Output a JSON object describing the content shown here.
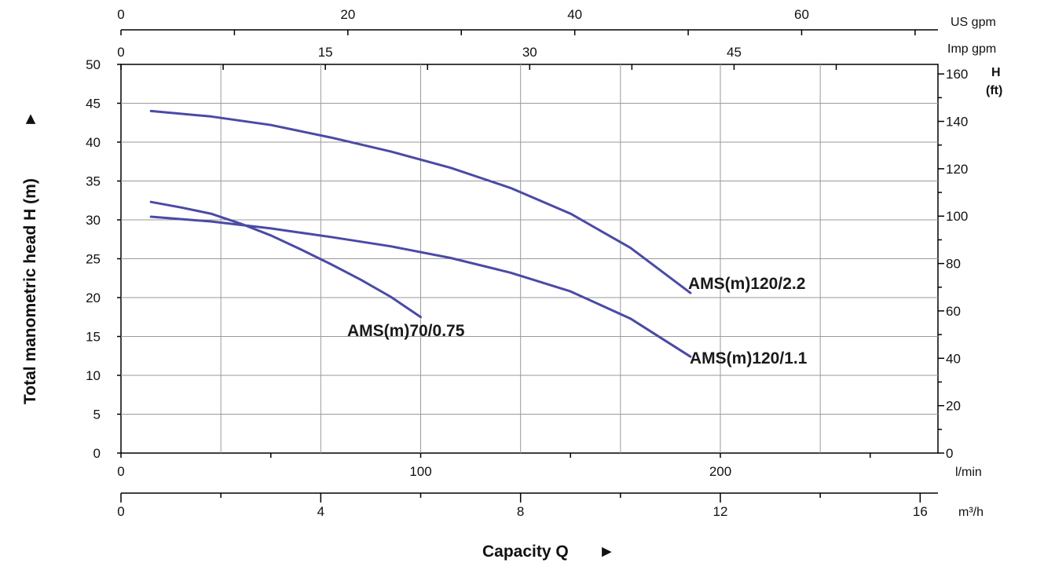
{
  "chart_data": {
    "type": "line",
    "xlabel": "Capacity Q",
    "xlabel_arrow": "►",
    "ylabel": "Total manometric head H (m)",
    "ylabel_arrow": "►",
    "x_unit": "l/min",
    "xlim": [
      0,
      270
    ],
    "ylim": [
      0,
      50
    ],
    "grid": true,
    "line_color": "#4a4aa6",
    "x_ticks": [
      0,
      100,
      200
    ],
    "y_ticks": [
      0,
      5,
      10,
      15,
      20,
      25,
      30,
      35,
      40,
      45,
      50
    ],
    "secondary_axes": {
      "us_gpm": {
        "unit": "US gpm",
        "ticks": [
          0,
          20,
          40,
          60
        ]
      },
      "imp_gpm": {
        "unit": "Imp gpm",
        "ticks": [
          0,
          15,
          30,
          45
        ]
      },
      "m3h": {
        "unit": "m³/h",
        "ticks": [
          0,
          4,
          8,
          12,
          16
        ]
      },
      "h_ft": {
        "unit_line1": "H",
        "unit_line2": "(ft)",
        "ticks": [
          0,
          20,
          40,
          60,
          80,
          100,
          120,
          140,
          160
        ]
      }
    },
    "series": [
      {
        "name": "AMS(m)70/0.75",
        "x": [
          10,
          20,
          30,
          40,
          50,
          60,
          70,
          80,
          90,
          100
        ],
        "y": [
          32.3,
          31.6,
          30.8,
          29.5,
          28.0,
          26.2,
          24.3,
          22.3,
          20.1,
          17.5
        ]
      },
      {
        "name": "AMS(m)120/1.1",
        "x": [
          10,
          30,
          50,
          70,
          90,
          110,
          130,
          150,
          170,
          190
        ],
        "y": [
          30.4,
          29.8,
          28.9,
          27.8,
          26.6,
          25.1,
          23.2,
          20.8,
          17.3,
          12.4
        ]
      },
      {
        "name": "AMS(m)120/2.2",
        "x": [
          10,
          30,
          50,
          70,
          90,
          110,
          130,
          150,
          170,
          190
        ],
        "y": [
          44.0,
          43.3,
          42.2,
          40.6,
          38.8,
          36.7,
          34.1,
          30.8,
          26.4,
          20.6
        ]
      }
    ]
  }
}
